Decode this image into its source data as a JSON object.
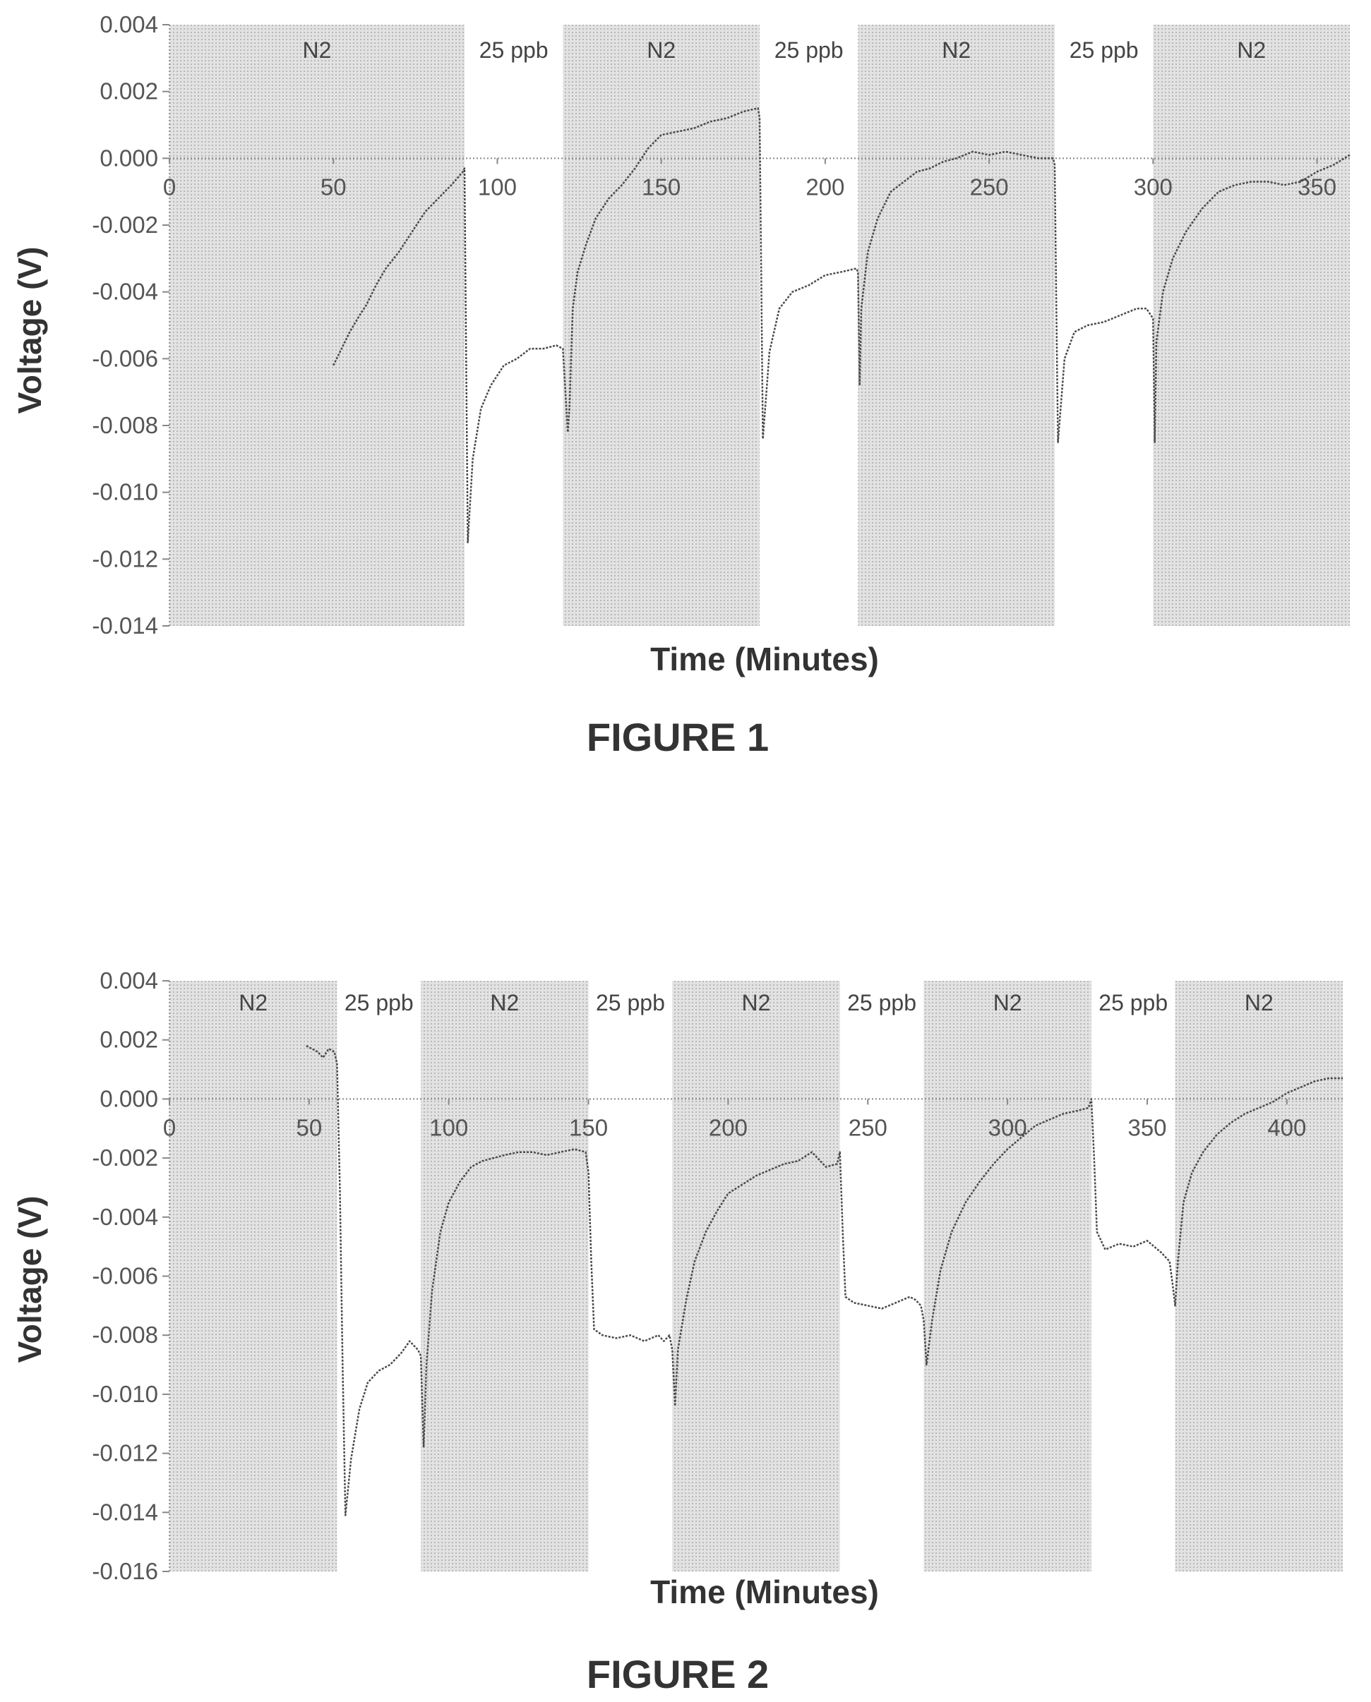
{
  "chart_data": [
    {
      "type": "line",
      "caption": "FIGURE 1",
      "xlabel": "Time (Minutes)",
      "ylabel": "Voltage (V)",
      "xlim": [
        0,
        360
      ],
      "ylim": [
        -0.014,
        0.004
      ],
      "xticks": [
        "0",
        "50",
        "100",
        "150",
        "200",
        "250",
        "300",
        "350"
      ],
      "yticks": [
        "0.004",
        "0.002",
        "0.000",
        "-0.002",
        "-0.004",
        "-0.006",
        "-0.008",
        "-0.010",
        "-0.012",
        "-0.014"
      ],
      "bands": [
        {
          "label": "N2",
          "start": 0,
          "end": 90,
          "shaded": true
        },
        {
          "label": "25 ppb",
          "start": 90,
          "end": 120,
          "shaded": false
        },
        {
          "label": "N2",
          "start": 120,
          "end": 180,
          "shaded": true
        },
        {
          "label": "25 ppb",
          "start": 180,
          "end": 210,
          "shaded": false
        },
        {
          "label": "N2",
          "start": 210,
          "end": 270,
          "shaded": true
        },
        {
          "label": "25 ppb",
          "start": 270,
          "end": 300,
          "shaded": false
        },
        {
          "label": "N2",
          "start": 300,
          "end": 360,
          "shaded": true
        }
      ],
      "series": [
        {
          "x": [
            50,
            52,
            55,
            58,
            60,
            63,
            66,
            70,
            74,
            78,
            82,
            86,
            89.5,
            90,
            90.5,
            91,
            92.5,
            95,
            98,
            102,
            106,
            110,
            114,
            118,
            120,
            121.5,
            122,
            122.5,
            123,
            124.5,
            127,
            130,
            134,
            138,
            142,
            146,
            150,
            155,
            160,
            165,
            170,
            175,
            179.5,
            180,
            180.5,
            181,
            183,
            186,
            190,
            195,
            200,
            205,
            209.5,
            210,
            210.5,
            211,
            213,
            216,
            220,
            224,
            228,
            232,
            236,
            240,
            245,
            250,
            255,
            260,
            265,
            269.5,
            270,
            270.5,
            271,
            273,
            276,
            280,
            285,
            290,
            295,
            298,
            300,
            300.5,
            301,
            303,
            306,
            310,
            315,
            320,
            325,
            330,
            335,
            340,
            345,
            350,
            355,
            360
          ],
          "y": [
            -0.0062,
            -0.0058,
            -0.0052,
            -0.0047,
            -0.0044,
            -0.0038,
            -0.0033,
            -0.0028,
            -0.0022,
            -0.0016,
            -0.0012,
            -0.0008,
            -0.0004,
            -0.0003,
            -0.006,
            -0.0115,
            -0.009,
            -0.0075,
            -0.0068,
            -0.0062,
            -0.006,
            -0.0057,
            -0.0057,
            -0.0056,
            -0.0057,
            -0.0082,
            -0.0075,
            -0.006,
            -0.0045,
            -0.0034,
            -0.0026,
            -0.0018,
            -0.0012,
            -0.0008,
            -0.0003,
            0.0003,
            0.0007,
            0.0008,
            0.0009,
            0.0011,
            0.0012,
            0.0014,
            0.0015,
            0.0012,
            -0.0035,
            -0.0084,
            -0.0058,
            -0.0045,
            -0.004,
            -0.0038,
            -0.0035,
            -0.0034,
            -0.0033,
            -0.0034,
            -0.0068,
            -0.0045,
            -0.0028,
            -0.0018,
            -0.001,
            -0.0007,
            -0.0004,
            -0.0003,
            -0.0001,
            0.0,
            0.0002,
            0.0001,
            0.0002,
            0.0001,
            0.0,
            0.0,
            -0.0002,
            -0.0045,
            -0.0085,
            -0.006,
            -0.0052,
            -0.005,
            -0.0049,
            -0.0047,
            -0.0045,
            -0.0045,
            -0.0048,
            -0.0085,
            -0.0055,
            -0.004,
            -0.003,
            -0.0022,
            -0.0015,
            -0.001,
            -0.0008,
            -0.0007,
            -0.0007,
            -0.0008,
            -0.0007,
            -0.0004,
            -0.0002,
            0.0001
          ]
        }
      ]
    },
    {
      "type": "line",
      "caption": "FIGURE 2",
      "xlabel": "Time (Minutes)",
      "ylabel": "Voltage (V)",
      "xlim": [
        0,
        420
      ],
      "ylim": [
        -0.016,
        0.004
      ],
      "xticks": [
        "0",
        "50",
        "100",
        "150",
        "200",
        "250",
        "300",
        "350",
        "400"
      ],
      "yticks": [
        "0.004",
        "0.002",
        "0.000",
        "-0.002",
        "-0.004",
        "-0.006",
        "-0.008",
        "-0.010",
        "-0.012",
        "-0.014",
        "-0.016"
      ],
      "bands": [
        {
          "label": "N2",
          "start": 0,
          "end": 60,
          "shaded": true
        },
        {
          "label": "25 ppb",
          "start": 60,
          "end": 90,
          "shaded": false
        },
        {
          "label": "N2",
          "start": 90,
          "end": 150,
          "shaded": true
        },
        {
          "label": "25 ppb",
          "start": 150,
          "end": 180,
          "shaded": false
        },
        {
          "label": "N2",
          "start": 180,
          "end": 240,
          "shaded": true
        },
        {
          "label": "25 ppb",
          "start": 240,
          "end": 270,
          "shaded": false
        },
        {
          "label": "N2",
          "start": 270,
          "end": 330,
          "shaded": true
        },
        {
          "label": "25 ppb",
          "start": 330,
          "end": 360,
          "shaded": false
        },
        {
          "label": "N2",
          "start": 360,
          "end": 420,
          "shaded": true
        }
      ],
      "series": [
        {
          "x": [
            49,
            51,
            53,
            55,
            57,
            59,
            60,
            61,
            62,
            63,
            65,
            68,
            71,
            75,
            79,
            83,
            86,
            89,
            90,
            91,
            92,
            94,
            97,
            100,
            104,
            108,
            112,
            116,
            120,
            125,
            130,
            135,
            140,
            145,
            149,
            150,
            151,
            152,
            155,
            160,
            165,
            170,
            175,
            177,
            179,
            180,
            181,
            182,
            185,
            188,
            192,
            196,
            200,
            205,
            210,
            215,
            220,
            225,
            230,
            235,
            239,
            240,
            241,
            242,
            245,
            250,
            255,
            260,
            265,
            267,
            269,
            270,
            271,
            273,
            276,
            280,
            285,
            290,
            295,
            300,
            305,
            310,
            315,
            320,
            325,
            329,
            330,
            331,
            332,
            335,
            340,
            345,
            350,
            355,
            358,
            359,
            360,
            361,
            363,
            366,
            370,
            375,
            380,
            385,
            390,
            395,
            400,
            405,
            410,
            415,
            420
          ],
          "y": [
            0.0018,
            0.0017,
            0.0016,
            0.0014,
            0.0017,
            0.0016,
            0.0012,
            -0.003,
            -0.009,
            -0.0141,
            -0.0122,
            -0.0105,
            -0.0096,
            -0.0092,
            -0.009,
            -0.0086,
            -0.0082,
            -0.0085,
            -0.0087,
            -0.0118,
            -0.009,
            -0.0065,
            -0.0045,
            -0.0035,
            -0.0028,
            -0.0023,
            -0.0021,
            -0.002,
            -0.0019,
            -0.0018,
            -0.0018,
            -0.0019,
            -0.0018,
            -0.0017,
            -0.0018,
            -0.0025,
            -0.0055,
            -0.0078,
            -0.008,
            -0.0081,
            -0.008,
            -0.0082,
            -0.008,
            -0.0082,
            -0.008,
            -0.0085,
            -0.0104,
            -0.0085,
            -0.0068,
            -0.0055,
            -0.0045,
            -0.0038,
            -0.0032,
            -0.0029,
            -0.0026,
            -0.0024,
            -0.0022,
            -0.0021,
            -0.0018,
            -0.0023,
            -0.0022,
            -0.0018,
            -0.0045,
            -0.0067,
            -0.0069,
            -0.007,
            -0.0071,
            -0.0069,
            -0.0067,
            -0.0068,
            -0.007,
            -0.0075,
            -0.009,
            -0.0075,
            -0.0058,
            -0.0045,
            -0.0035,
            -0.0028,
            -0.0022,
            -0.0017,
            -0.0013,
            -0.0009,
            -0.0007,
            -0.0005,
            -0.0004,
            -0.0003,
            0.0,
            -0.002,
            -0.0045,
            -0.0051,
            -0.0049,
            -0.005,
            -0.0048,
            -0.0052,
            -0.0055,
            -0.0062,
            -0.007,
            -0.0055,
            -0.0035,
            -0.0025,
            -0.0018,
            -0.0012,
            -0.0008,
            -0.0005,
            -0.0003,
            -0.0001,
            0.0002,
            0.0004,
            0.0006,
            0.0007,
            0.0007
          ]
        }
      ]
    }
  ]
}
